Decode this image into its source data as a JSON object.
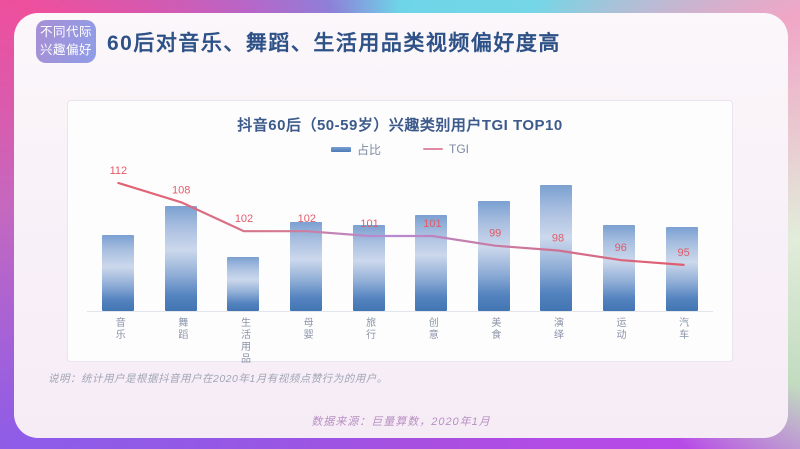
{
  "page": {
    "badge_line1": "不同代际",
    "badge_line2": "兴趣偏好",
    "title": "60后对音乐、舞蹈、生活用品类视频偏好度高",
    "note": "说明：统计用户是根据抖音用户在2020年1月有视频点赞行为的用户。",
    "source": "数据来源：巨量算数，2020年1月"
  },
  "chart_data": {
    "type": "bar",
    "title": "抖音60后（50-59岁）兴趣类别用户TGI TOP10",
    "categories": [
      "音乐",
      "舞蹈",
      "生活用品",
      "母婴",
      "旅行",
      "创意",
      "美食",
      "演绎",
      "运动",
      "汽车"
    ],
    "series": [
      {
        "name": "占比",
        "type": "bar",
        "axis": "hidden",
        "values_relative": [
          60,
          83,
          43,
          71,
          68,
          76,
          87,
          100,
          68,
          67
        ]
      },
      {
        "name": "TGI",
        "type": "line",
        "values": [
          112,
          108,
          102,
          102,
          101,
          101,
          99,
          98,
          96,
          95
        ]
      }
    ],
    "legend": [
      "占比",
      "TGI"
    ],
    "legend_position": "top",
    "grid": false,
    "colors": {
      "bar_top": "#7ba0d1",
      "bar_mid": "#ccd8ec",
      "bar_bottom": "#4175b2",
      "line_start": "#e25f70",
      "line_mid": "#b48cd4",
      "line_end": "#e25b6c",
      "tgi_label": "#e05c6a"
    }
  }
}
